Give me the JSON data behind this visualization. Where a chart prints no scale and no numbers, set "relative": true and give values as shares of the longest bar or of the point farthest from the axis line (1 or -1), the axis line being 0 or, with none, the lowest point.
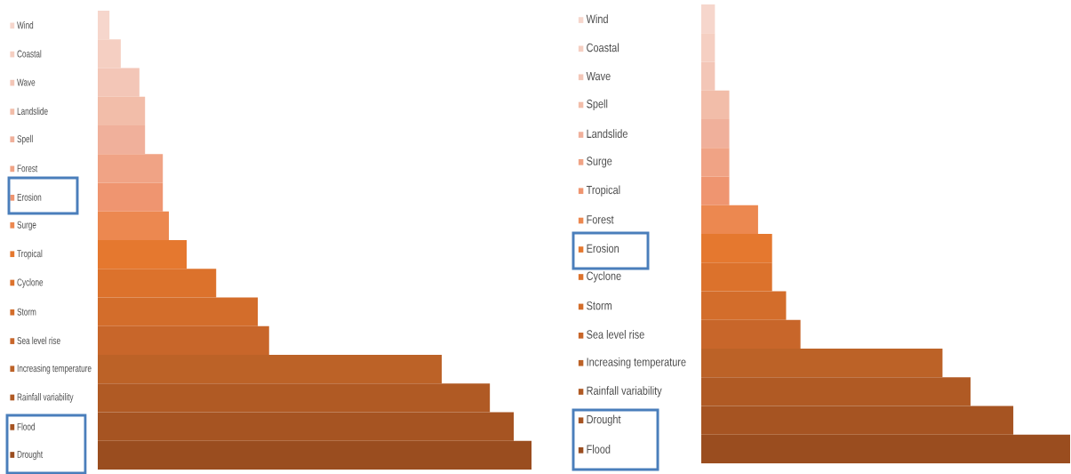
{
  "chart_data": [
    {
      "type": "bar",
      "orientation": "horizontal",
      "relative": true,
      "categories": [
        "Wind",
        "Coastal",
        "Wave",
        "Landslide",
        "Spell",
        "Forest",
        "Erosion",
        "Surge",
        "Tropical",
        "Cyclone",
        "Storm",
        "Sea level rise",
        "Increasing temperature",
        "Rainfall variability",
        "Flood",
        "Drought"
      ],
      "values": [
        0.027,
        0.053,
        0.096,
        0.109,
        0.109,
        0.15,
        0.15,
        0.164,
        0.205,
        0.273,
        0.369,
        0.395,
        0.793,
        0.904,
        0.959,
        1
      ],
      "colors": [
        "#f6d6cc",
        "#f5cfc2",
        "#f3c6b7",
        "#f2bda9",
        "#f0b09b",
        "#f0a385",
        "#ef9570",
        "#ec8850",
        "#e5782f",
        "#dc722c",
        "#d36d2b",
        "#c8662a",
        "#bc6227",
        "#b05a24",
        "#a65422",
        "#9a4d1f"
      ]
    },
    {
      "type": "bar",
      "orientation": "horizontal",
      "relative": true,
      "categories": [
        "Wind",
        "Coastal",
        "Wave",
        "Spell",
        "Landslide",
        "Surge",
        "Tropical",
        "Forest",
        "Erosion",
        "Cyclone",
        "Storm",
        "Sea level rise",
        "Increasing temperature",
        "Rainfall variability",
        "Drought",
        "Flood"
      ],
      "values": [
        0.037,
        0.037,
        0.037,
        0.076,
        0.076,
        0.076,
        0.076,
        0.154,
        0.192,
        0.192,
        0.23,
        0.269,
        0.654,
        0.73,
        0.846,
        1
      ],
      "colors": [
        "#f6d6cc",
        "#f5cfc2",
        "#f3c6b7",
        "#f2bda9",
        "#f0b09b",
        "#f0a385",
        "#ef9570",
        "#ec8850",
        "#e5782f",
        "#dc722c",
        "#d36d2b",
        "#c8662a",
        "#bc6227",
        "#b05a24",
        "#a65422",
        "#9a4d1f"
      ]
    }
  ]
}
